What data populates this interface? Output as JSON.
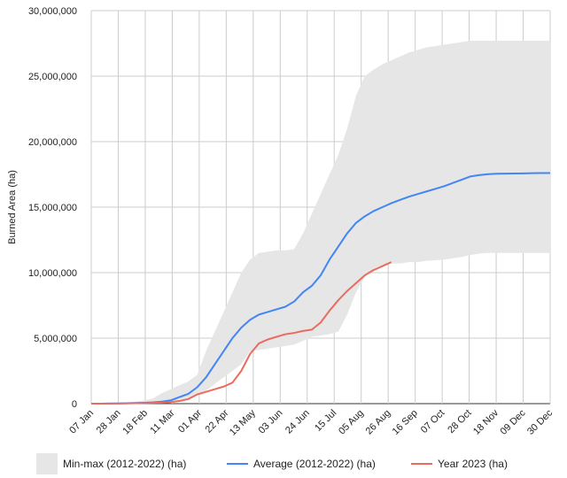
{
  "chart_data": {
    "type": "area",
    "title": "",
    "xlabel": "",
    "ylabel": "Burned Area (ha)",
    "x_ticks": [
      "07 Jan",
      "28 Jan",
      "18 Feb",
      "11 Mar",
      "01 Apr",
      "22 Apr",
      "13 May",
      "03 Jun",
      "24 Jun",
      "15 Jul",
      "05 Aug",
      "26 Aug",
      "16 Sep",
      "07 Oct",
      "28 Oct",
      "18 Nov",
      "09 Dec",
      "30 Dec"
    ],
    "y_ticks": [
      "0",
      "5,000,000",
      "10,000,000",
      "15,000,000",
      "20,000,000",
      "25,000,000",
      "30,000,000"
    ],
    "ylim": [
      0,
      30000000
    ],
    "grid": true,
    "legend_position": "bottom",
    "x": [
      "01 Jan",
      "07 Jan",
      "14 Jan",
      "21 Jan",
      "28 Jan",
      "04 Feb",
      "11 Feb",
      "18 Feb",
      "25 Feb",
      "04 Mar",
      "11 Mar",
      "18 Mar",
      "25 Mar",
      "01 Apr",
      "08 Apr",
      "15 Apr",
      "22 Apr",
      "29 Apr",
      "06 May",
      "13 May",
      "20 May",
      "27 May",
      "03 Jun",
      "10 Jun",
      "17 Jun",
      "24 Jun",
      "01 Jul",
      "08 Jul",
      "15 Jul",
      "22 Jul",
      "29 Jul",
      "05 Aug",
      "12 Aug",
      "19 Aug",
      "26 Aug",
      "02 Sep",
      "09 Sep",
      "16 Sep",
      "23 Sep",
      "30 Sep",
      "07 Oct",
      "14 Oct",
      "21 Oct",
      "28 Oct",
      "04 Nov",
      "11 Nov",
      "18 Nov",
      "25 Nov",
      "02 Dec",
      "09 Dec",
      "16 Dec",
      "23 Dec",
      "30 Dec"
    ],
    "series": [
      {
        "name": "Min-max (2012-2022) (ha)",
        "kind": "band",
        "color": "#e6e6e6",
        "lower": [
          0,
          0,
          0,
          0,
          10000,
          20000,
          30000,
          50000,
          80000,
          120000,
          200000,
          400000,
          700000,
          1000000,
          1500000,
          2000000,
          2500000,
          3000000,
          4000000,
          4100000,
          4200000,
          4300000,
          4400000,
          4500000,
          4800000,
          5100000,
          5200000,
          5300000,
          5500000,
          6800000,
          8500000,
          9700000,
          10300000,
          10600000,
          10700000,
          10700000,
          10800000,
          10800000,
          10900000,
          10950000,
          11000000,
          11100000,
          11200000,
          11350000,
          11450000,
          11500000,
          11500000,
          11500000,
          11500000,
          11500000,
          11500000,
          11500000,
          11500000
        ],
        "upper": [
          0,
          0,
          20000,
          40000,
          80000,
          150000,
          250000,
          400000,
          800000,
          1100000,
          1400000,
          1700000,
          2200000,
          4000000,
          5500000,
          7000000,
          8500000,
          10000000,
          11000000,
          11500000,
          11600000,
          11700000,
          11700000,
          11800000,
          13000000,
          14500000,
          16000000,
          17500000,
          19000000,
          21000000,
          23500000,
          25000000,
          25500000,
          25900000,
          26200000,
          26500000,
          26800000,
          27000000,
          27200000,
          27300000,
          27400000,
          27500000,
          27600000,
          27700000,
          27700000,
          27700000,
          27700000,
          27700000,
          27700000,
          27700000,
          27700000,
          27700000,
          27700000
        ]
      },
      {
        "name": "Average (2012-2022) (ha)",
        "kind": "line",
        "color": "#4285f4",
        "values": [
          0,
          0,
          10000,
          20000,
          30000,
          50000,
          70000,
          100000,
          150000,
          250000,
          500000,
          750000,
          1250000,
          2000000,
          3000000,
          4000000,
          5000000,
          5800000,
          6400000,
          6800000,
          7000000,
          7200000,
          7400000,
          7800000,
          8500000,
          9000000,
          9800000,
          11000000,
          12000000,
          13000000,
          13800000,
          14300000,
          14700000,
          15000000,
          15300000,
          15550000,
          15800000,
          16000000,
          16200000,
          16400000,
          16600000,
          16850000,
          17100000,
          17350000,
          17450000,
          17520000,
          17550000,
          17560000,
          17570000,
          17580000,
          17590000,
          17600000,
          17600000
        ]
      },
      {
        "name": "Year 2023 (ha)",
        "kind": "line",
        "color": "#ea6b5f",
        "values": [
          0,
          0,
          5000,
          10000,
          20000,
          30000,
          40000,
          60000,
          80000,
          120000,
          200000,
          350000,
          700000,
          900000,
          1100000,
          1300000,
          1600000,
          2500000,
          3800000,
          4600000,
          4900000,
          5100000,
          5300000,
          5400000,
          5550000,
          5650000,
          6200000,
          7100000,
          7900000,
          8600000,
          9200000,
          9800000,
          10200000,
          10500000,
          10800000,
          null,
          null,
          null,
          null,
          null,
          null,
          null,
          null,
          null,
          null,
          null,
          null,
          null,
          null,
          null,
          null,
          null,
          null
        ]
      }
    ]
  }
}
